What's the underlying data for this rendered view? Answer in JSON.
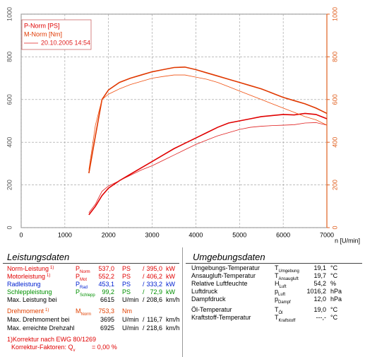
{
  "chart_data": {
    "type": "line",
    "x_label": "n [U/min]",
    "x": [
      1550,
      1700,
      1850,
      2000,
      2250,
      2500,
      2750,
      3000,
      3250,
      3500,
      3750,
      4000,
      4250,
      4500,
      4750,
      5000,
      5250,
      5500,
      5750,
      6000,
      6250,
      6500,
      6750,
      7000
    ],
    "series": [
      {
        "name": "P-Norm [PS]",
        "color": "#e00000",
        "width": 1.6,
        "values": [
          60,
          100,
          150,
          185,
          220,
          250,
          280,
          310,
          340,
          370,
          395,
          420,
          445,
          470,
          490,
          500,
          510,
          520,
          525,
          530,
          528,
          535,
          530,
          510
        ]
      },
      {
        "name": "M-Norm [Nm]",
        "color": "#e03800",
        "width": 1.6,
        "axis": "y2",
        "values": [
          255,
          430,
          600,
          645,
          680,
          700,
          715,
          730,
          740,
          750,
          752,
          740,
          725,
          710,
          695,
          680,
          665,
          650,
          630,
          610,
          595,
          580,
          560,
          535
        ]
      },
      {
        "name": "20.10.2005 14:54",
        "color": "#e02020",
        "width": 0.8,
        "values": [
          70,
          110,
          170,
          195,
          220,
          245,
          270,
          290,
          315,
          340,
          365,
          390,
          410,
          430,
          445,
          460,
          470,
          475,
          478,
          480,
          482,
          490,
          492,
          480
        ]
      },
      {
        "color": "#f05010",
        "width": 0.8,
        "axis": "y2",
        "values": [
          270,
          480,
          600,
          625,
          650,
          670,
          685,
          700,
          708,
          715,
          715,
          705,
          695,
          680,
          660,
          640,
          620,
          600,
          580,
          560,
          540,
          520,
          505,
          480
        ]
      }
    ],
    "xlim": [
      0,
      7000
    ],
    "xticks": [
      0,
      1000,
      2000,
      3000,
      4000,
      5000,
      6000,
      7000
    ],
    "ylim": [
      0,
      1000
    ],
    "yticks": [
      0,
      200,
      400,
      600,
      800,
      1000
    ],
    "y2lim": [
      0,
      1000
    ],
    "y2ticks": [
      0,
      200,
      400,
      600,
      800,
      1000
    ],
    "y2color": "#e06020",
    "grid": true
  },
  "leistungsdaten": {
    "title": "Leistungsdaten",
    "rows": [
      {
        "label": "Norm-Leistung",
        "note": "1)",
        "sym": "P",
        "sub": "Norm",
        "v1": "537,0",
        "u1": "PS",
        "sep": "/",
        "v2": "395,0",
        "u2": "kW",
        "color": "#e00000"
      },
      {
        "label": "Motorleistung",
        "note": "1)",
        "sym": "P",
        "sub": "Mot",
        "v1": "552,2",
        "u1": "PS",
        "sep": "/",
        "v2": "406,2",
        "u2": "kW",
        "color": "#e00000"
      },
      {
        "label": "Radleistung",
        "sym": "P",
        "sub": "Rad",
        "v1": "453,1",
        "u1": "PS",
        "sep": "/",
        "v2": "333,2",
        "u2": "kW",
        "color": "#0020d0"
      },
      {
        "label": "Schleppleistung",
        "sym": "P",
        "sub": "Schlepp",
        "v1": "99,2",
        "u1": "PS",
        "sep": "/",
        "v2": "72,9",
        "u2": "kW",
        "color": "#009000"
      },
      {
        "label": "Max. Leistung bei",
        "v1": "6615",
        "u1": "U/min",
        "sep": "/",
        "v2": "208,6",
        "u2": "km/h",
        "color": "#000000"
      },
      {
        "label": "Drehmoment",
        "note": "1)",
        "sym": "M",
        "sub": "Norm",
        "v1": "753,3",
        "u1": "Nm",
        "color": "#e04000"
      },
      {
        "label": "Max. Drehmoment bei",
        "v1": "3695",
        "u1": "U/min",
        "sep": "/",
        "v2": "116,7",
        "u2": "km/h",
        "color": "#000000"
      },
      {
        "label": "Max. erreichte Drehzahl",
        "v1": "6925",
        "u1": "U/min",
        "sep": "/",
        "v2": "218,6",
        "u2": "km/h",
        "color": "#000000"
      }
    ],
    "footnote": {
      "line1": "1)Korrektur nach EWG 80/1269",
      "line2": "Korrektur-Faktoren: Q",
      "sub": "v",
      "line2end": "=  0,00 %",
      "color": "#e00000"
    }
  },
  "umgebungsdaten": {
    "title": "Umgebungsdaten",
    "rows": [
      {
        "label": "Umgebungs-Temperatur",
        "sym": "T",
        "sub": "Umgebung",
        "v1": "19,1",
        "u1": "°C"
      },
      {
        "label": "Ansaugluft-Temperatur",
        "sym": "T",
        "sub": "Ansaugluft",
        "v1": "19,7",
        "u1": "°C"
      },
      {
        "label": "Relative Luftfeuchte",
        "sym": "H",
        "sub": "Luft",
        "v1": "54,2",
        "u1": "%"
      },
      {
        "label": "Luftdruck",
        "sym": "p",
        "sub": "Luft",
        "v1": "1016,2",
        "u1": "hPa"
      },
      {
        "label": "Dampfdruck",
        "sym": "p",
        "sub": "Dampf",
        "v1": "12,0",
        "u1": "hPa"
      },
      {
        "label": "Öl-Temperatur",
        "sym": "T",
        "sub": "Öl",
        "v1": "19,0",
        "u1": "°C"
      },
      {
        "label": "Kraftstoff-Temperatur",
        "sym": "T",
        "sub": "Kraftstoff",
        "v1": "---,-",
        "u1": "°C"
      }
    ]
  }
}
